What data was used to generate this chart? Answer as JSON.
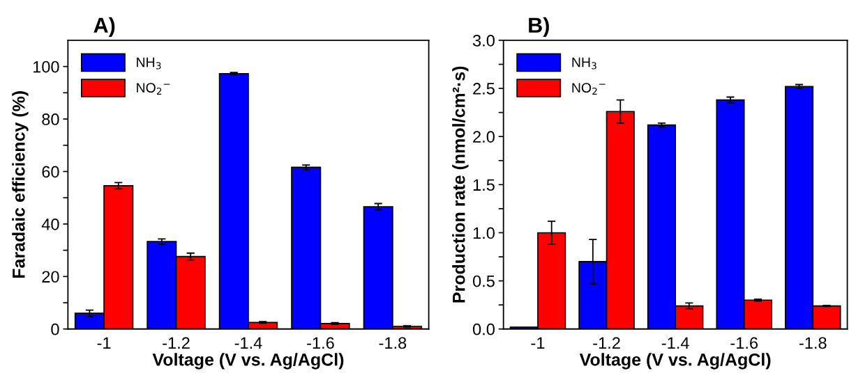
{
  "chart_data": [
    {
      "type": "bar",
      "title": "A)",
      "xlabel": "Voltage (V vs. Ag/AgCl)",
      "ylabel": "Faradaic efficiency (%)",
      "categories": [
        "-1",
        "-1.2",
        "-1.4",
        "-1.6",
        "-1.8"
      ],
      "series": [
        {
          "name": "NH$_{3}$",
          "color": "#0000ff",
          "values": [
            6.0,
            33.3,
            97.3,
            61.6,
            46.6
          ],
          "errors": [
            1.2,
            1.0,
            0.4,
            0.9,
            1.2
          ]
        },
        {
          "name": "NO$_{2}$$^{−}$",
          "color": "#ff0000",
          "values": [
            54.6,
            27.6,
            2.5,
            2.1,
            1.0
          ],
          "errors": [
            1.2,
            1.3,
            0.3,
            0.3,
            0.2
          ]
        }
      ],
      "ylim": [
        0,
        110
      ],
      "yticks": [
        0,
        {
          "value": 10,
          "label": null
        },
        20,
        {
          "value": 30,
          "label": null
        },
        40,
        {
          "value": 50,
          "label": null
        },
        60,
        {
          "value": 70,
          "label": null
        },
        80,
        {
          "value": 90,
          "label": null
        },
        100
      ],
      "legend": "top left",
      "grid": false
    },
    {
      "type": "bar",
      "title": "B)",
      "xlabel": "Voltage (V vs. Ag/AgCl)",
      "ylabel": "Production rate (nmol/cm²·s)",
      "categories": [
        "-1",
        "-1.2",
        "-1.4",
        "-1.6",
        "-1.8"
      ],
      "series": [
        {
          "name": "NH$_{3}$",
          "color": "#0000ff",
          "values": [
            0.02,
            0.7,
            2.12,
            2.38,
            2.52
          ],
          "errors": [
            null,
            0.23,
            0.02,
            0.03,
            0.02
          ]
        },
        {
          "name": "NO$_{2}$$^{−}$",
          "color": "#ff0000",
          "values": [
            1.0,
            2.26,
            0.24,
            0.3,
            0.24
          ],
          "errors": [
            0.12,
            0.12,
            0.03,
            0.01,
            0.005
          ]
        }
      ],
      "ylim": [
        0,
        3.0
      ],
      "yticks": [
        {
          "value": 0,
          "label": "0.0"
        },
        {
          "value": 0.25,
          "label": null
        },
        0.5,
        {
          "value": 0.75,
          "label": null
        },
        {
          "value": 1,
          "label": "1.0"
        },
        {
          "value": 1.25,
          "label": null
        },
        1.5,
        {
          "value": 1.75,
          "label": null
        },
        {
          "value": 2,
          "label": "2.0"
        },
        {
          "value": 2.25,
          "label": null
        },
        2.5,
        {
          "value": 2.75,
          "label": null
        },
        {
          "value": 3,
          "label": "3.0"
        }
      ],
      "legend": "top left",
      "grid": false
    }
  ]
}
